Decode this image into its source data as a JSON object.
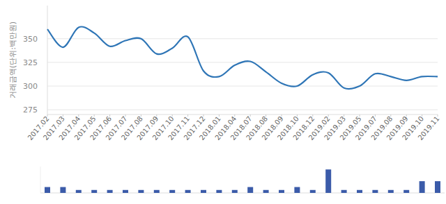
{
  "chart_data": [
    {
      "type": "line",
      "y_label": "거래금액(단위:백만원)",
      "categories": [
        "2017.02",
        "2017.03",
        "2017.04",
        "2017.05",
        "2017.06",
        "2017.07",
        "2017.08",
        "2017.09",
        "2017.10",
        "2017.11",
        "2017.12",
        "2018.01",
        "2018.04",
        "2018.07",
        "2018.08",
        "2018.09",
        "2018.10",
        "2018.12",
        "2019.02",
        "2019.03",
        "2019.05",
        "2019.07",
        "2019.08",
        "2019.09",
        "2019.10",
        "2019.11"
      ],
      "values": [
        360,
        341,
        362,
        356,
        342,
        348,
        350,
        334,
        340,
        352,
        316,
        310,
        322,
        326,
        315,
        303,
        300,
        312,
        314,
        298,
        300,
        313,
        310,
        306,
        310,
        310
      ],
      "color": "#2e75b6",
      "ylim": [
        270,
        385
      ],
      "yticks": [
        275,
        300,
        325,
        350
      ],
      "grid": true
    },
    {
      "type": "bar",
      "categories": [
        null,
        null,
        null,
        null,
        null,
        null,
        null,
        null,
        null,
        null,
        null,
        null,
        null,
        null,
        null,
        null,
        null,
        null,
        null,
        null,
        null,
        null,
        null,
        null,
        null,
        null
      ],
      "values": [
        2,
        2,
        1,
        1,
        1,
        1,
        1,
        1,
        1,
        1,
        1,
        1,
        1,
        2,
        1,
        1,
        2,
        1,
        8,
        1,
        1,
        1,
        1,
        1,
        4,
        4
      ],
      "color": "#3b5ba9",
      "ylim": [
        0,
        9
      ],
      "tick_labels": false
    }
  ]
}
